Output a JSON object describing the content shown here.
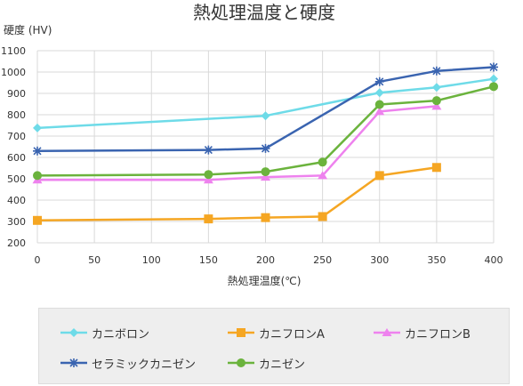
{
  "chart_data": {
    "type": "line",
    "title": "熱処理温度と硬度",
    "ylabel": "硬度 (HV)",
    "xlabel": "熱処理温度(℃)",
    "x_ticks": [
      0,
      50,
      100,
      150,
      200,
      250,
      300,
      350,
      400
    ],
    "y_ticks": [
      200,
      300,
      400,
      500,
      600,
      700,
      800,
      900,
      1000,
      1100
    ],
    "xlim": [
      0,
      400
    ],
    "ylim": [
      200,
      1100
    ],
    "grid": true,
    "legend_position": "bottom",
    "series": [
      {
        "name": "カニボロン",
        "color": "#6edbe8",
        "marker": "diamond",
        "points": [
          [
            0,
            738
          ],
          [
            200,
            795
          ],
          [
            300,
            903
          ],
          [
            350,
            928
          ],
          [
            400,
            968
          ]
        ]
      },
      {
        "name": "カニフロンA",
        "color": "#f5a623",
        "marker": "square",
        "points": [
          [
            0,
            305
          ],
          [
            150,
            312
          ],
          [
            200,
            318
          ],
          [
            250,
            323
          ],
          [
            300,
            515
          ],
          [
            350,
            553
          ]
        ]
      },
      {
        "name": "カニフロンB",
        "color": "#ee82ee",
        "marker": "triangle",
        "points": [
          [
            0,
            495
          ],
          [
            150,
            495
          ],
          [
            200,
            508
          ],
          [
            250,
            515
          ],
          [
            300,
            815
          ],
          [
            350,
            840
          ]
        ]
      },
      {
        "name": "セラミックカニゼン",
        "color": "#3a64b0",
        "marker": "star",
        "points": [
          [
            0,
            630
          ],
          [
            150,
            635
          ],
          [
            200,
            642
          ],
          [
            300,
            955
          ],
          [
            350,
            1005
          ],
          [
            400,
            1023
          ]
        ]
      },
      {
        "name": "カニゼン",
        "color": "#6bb33d",
        "marker": "circle",
        "points": [
          [
            0,
            515
          ],
          [
            150,
            520
          ],
          [
            200,
            533
          ],
          [
            250,
            578
          ],
          [
            300,
            848
          ],
          [
            350,
            866
          ],
          [
            400,
            932
          ]
        ]
      }
    ]
  }
}
